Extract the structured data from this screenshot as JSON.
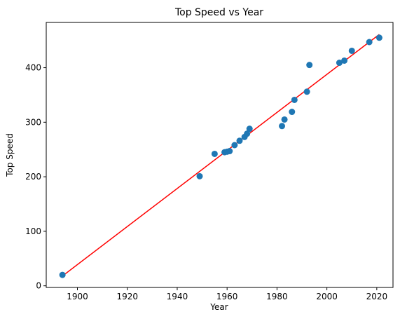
{
  "chart_data": {
    "type": "scatter",
    "title": "Top Speed vs Year",
    "xlabel": "Year",
    "ylabel": "Top Speed",
    "xlim": [
      1887.5,
      2026.5
    ],
    "ylim": [
      -3,
      483
    ],
    "xticks": [
      1900,
      1920,
      1940,
      1960,
      1980,
      2000,
      2020
    ],
    "yticks": [
      0,
      100,
      200,
      300,
      400
    ],
    "grid": false,
    "legend": "none",
    "series": [
      {
        "kind": "scatter",
        "color": "#1f77b4",
        "points": [
          [
            1894,
            20
          ],
          [
            1949,
            201
          ],
          [
            1955,
            242
          ],
          [
            1959,
            245
          ],
          [
            1960,
            246
          ],
          [
            1961,
            247
          ],
          [
            1963,
            258
          ],
          [
            1965,
            266
          ],
          [
            1967,
            273
          ],
          [
            1968,
            279
          ],
          [
            1969,
            288
          ],
          [
            1982,
            293
          ],
          [
            1983,
            305
          ],
          [
            1986,
            319
          ],
          [
            1987,
            341
          ],
          [
            1992,
            356
          ],
          [
            1993,
            405
          ],
          [
            2005,
            409
          ],
          [
            2007,
            413
          ],
          [
            2010,
            431
          ],
          [
            2017,
            447
          ],
          [
            2021,
            455
          ]
        ]
      },
      {
        "kind": "line",
        "color": "#ff0000",
        "points": [
          [
            1894,
            18
          ],
          [
            2021,
            461
          ]
        ]
      }
    ]
  }
}
